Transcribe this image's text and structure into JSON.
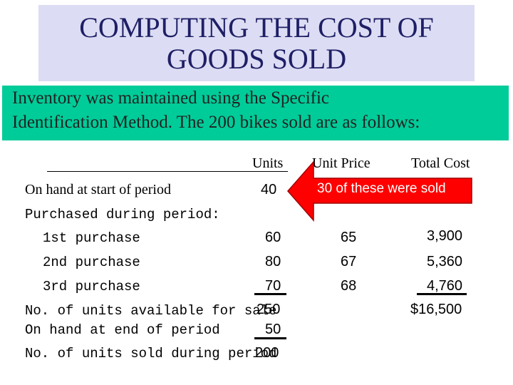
{
  "slide": {
    "title_lines": [
      "COMPUTING THE COST OF",
      "GOODS SOLD"
    ],
    "intro_lines": [
      "Inventory was maintained using the Specific",
      "Identification Method.  The 200 bikes sold are as follows:"
    ]
  },
  "table": {
    "headers": {
      "units": "Units",
      "unit_price": "Unit Price",
      "total_cost": "Total Cost"
    },
    "on_hand_start": {
      "label": "On hand at start of period",
      "units": "40"
    },
    "purchased_heading": "Purchased during period:",
    "purchases": [
      {
        "label": "1st purchase",
        "units": "60",
        "unit_price": "65",
        "total_cost": "3,900"
      },
      {
        "label": "2nd purchase",
        "units": "80",
        "unit_price": "67",
        "total_cost": "5,360"
      },
      {
        "label": "3rd purchase",
        "units": "70",
        "unit_price": "68",
        "total_cost": "4,760"
      }
    ],
    "available_for_sale": {
      "label": "No. of units available for sale",
      "units": "250",
      "total_cost": "$16,500"
    },
    "on_hand_end": {
      "label": "On hand at end of period",
      "units": "50"
    },
    "units_sold": {
      "label": "No. of units sold during period",
      "units": "200"
    }
  },
  "callout": {
    "text": "30 of these were sold",
    "color": "#ff0000"
  },
  "colors": {
    "title_bg": "#dcdcf4",
    "title_text": "#1f1f66",
    "intro_bg": "#00cc99"
  }
}
